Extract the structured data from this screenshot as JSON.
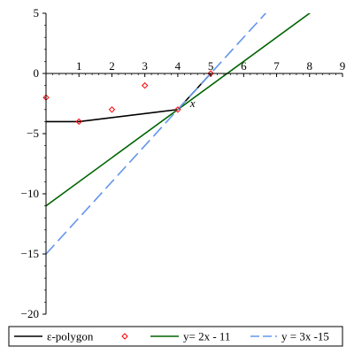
{
  "chart_data": {
    "type": "line",
    "title": "",
    "xlabel": "x",
    "ylabel": "",
    "xlim": [
      0,
      9
    ],
    "ylim": [
      -20,
      5
    ],
    "x_ticks": [
      1,
      2,
      3,
      4,
      5,
      6,
      7,
      8,
      9
    ],
    "y_ticks": [
      5,
      0,
      -5,
      -10,
      -15,
      -20
    ],
    "x_tick_labels": [
      "1",
      "2",
      "3",
      "4",
      "5",
      "6",
      "7",
      "8",
      "9"
    ],
    "y_tick_labels": [
      "5",
      "0",
      "−5",
      "−10",
      "−15",
      "−20"
    ],
    "grid": false,
    "legend_position": "bottom",
    "series": [
      {
        "name": "ε-polygon",
        "kind": "line",
        "color": "#000000",
        "dash": "solid",
        "points": [
          [
            0,
            -4
          ],
          [
            1,
            -4
          ],
          [
            4,
            -3
          ],
          [
            5,
            0
          ]
        ]
      },
      {
        "name": "",
        "kind": "scatter",
        "color": "#ff0000",
        "marker": "diamond",
        "points": [
          [
            0,
            -2
          ],
          [
            1,
            -4
          ],
          [
            2,
            -3
          ],
          [
            3,
            -1
          ],
          [
            4,
            -3
          ],
          [
            5,
            0
          ]
        ]
      },
      {
        "name": "y= 2x - 11",
        "kind": "line",
        "color": "#006400",
        "dash": "solid",
        "slope": 2,
        "intercept": -11
      },
      {
        "name": "y = 3x -15",
        "kind": "line",
        "color": "#6495ed",
        "dash": "dashed",
        "slope": 3,
        "intercept": -15
      }
    ]
  }
}
